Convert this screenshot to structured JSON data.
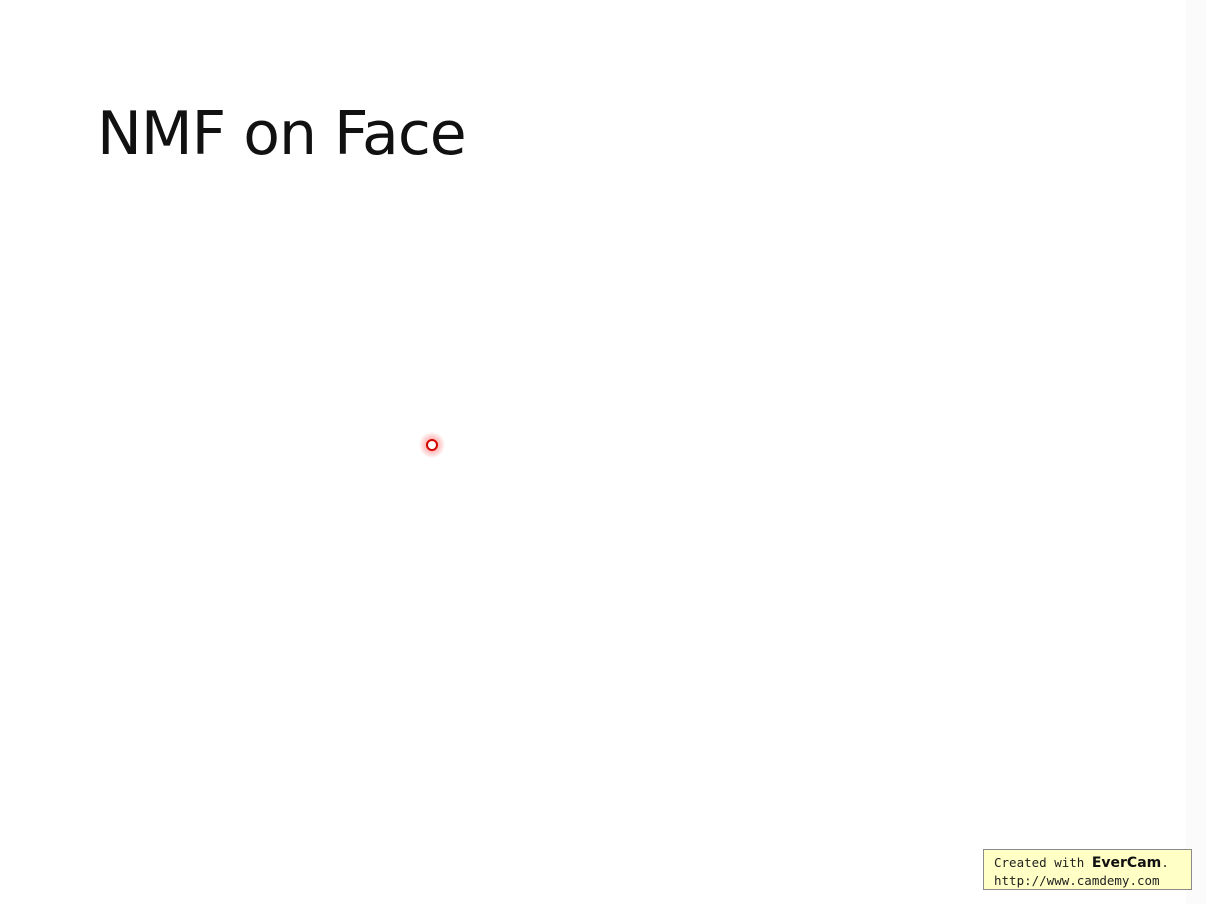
{
  "slide": {
    "title": "NMF on Face"
  },
  "watermark": {
    "prefix": "Created with ",
    "brand": "EverCam",
    "suffix": ".",
    "url": "http://www.camdemy.com"
  },
  "colors": {
    "laser": "#d40000",
    "watermark_bg": "#ffffc6",
    "title": "#111111"
  }
}
